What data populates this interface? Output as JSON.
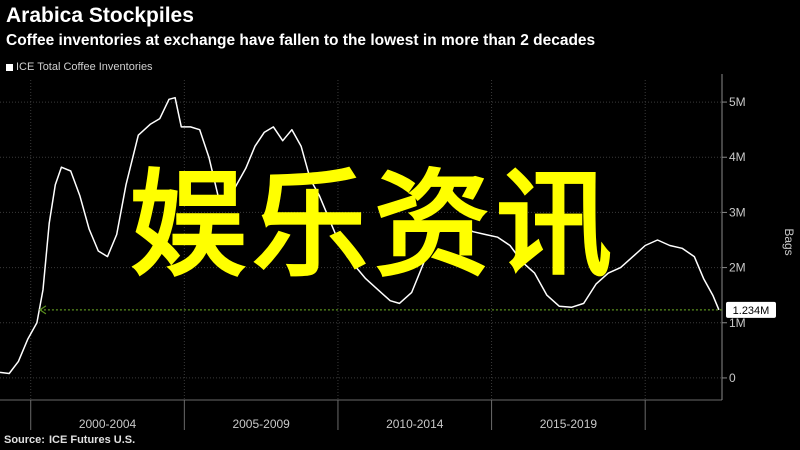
{
  "header": {
    "title": "Arabica Stockpiles",
    "subtitle": "Coffee inventories at exchange have fallen to the lowest in more than 2 decades"
  },
  "watermark": {
    "text": "娱乐资讯"
  },
  "source": {
    "label": "Source:",
    "text": "ICE Futures U.S."
  },
  "chart_data": {
    "type": "line",
    "title": "Arabica Stockpiles",
    "subtitle": "Coffee inventories at exchange have fallen to the lowest in more than 2 decades",
    "ylabel": "Bags",
    "ylim": [
      -0.4,
      5.4
    ],
    "y_unit": "M",
    "y_ticks": [
      {
        "value": 0,
        "label": "0"
      },
      {
        "value": 1,
        "label": "1M"
      },
      {
        "value": 2,
        "label": "2M"
      },
      {
        "value": 3,
        "label": "3M"
      },
      {
        "value": 4,
        "label": "4M"
      },
      {
        "value": 5,
        "label": "5M"
      }
    ],
    "xlim": [
      1998.0,
      2021.5
    ],
    "x_period_boundaries": [
      1999,
      2004,
      2009,
      2014,
      2019
    ],
    "x_period_labels": [
      {
        "label": "2000-2004",
        "center": 2001.5
      },
      {
        "label": "2005-2009",
        "center": 2006.5
      },
      {
        "label": "2010-2014",
        "center": 2011.5
      },
      {
        "label": "2015-2019",
        "center": 2016.5
      }
    ],
    "grid": true,
    "legend": "top-left",
    "legend_entries": [
      "ICE Total Coffee Inventories"
    ],
    "colors": {
      "series": "#ffffff",
      "reference_line": "#5a8f1e",
      "watermark": "#ffff00"
    },
    "series": [
      {
        "name": "ICE Total Coffee Inventories",
        "points": [
          [
            1998.0,
            0.1
          ],
          [
            1998.3,
            0.08
          ],
          [
            1998.6,
            0.3
          ],
          [
            1998.9,
            0.7
          ],
          [
            1999.2,
            1.0
          ],
          [
            1999.4,
            1.6
          ],
          [
            1999.6,
            2.8
          ],
          [
            1999.8,
            3.5
          ],
          [
            2000.0,
            3.82
          ],
          [
            2000.3,
            3.75
          ],
          [
            2000.6,
            3.3
          ],
          [
            2000.9,
            2.7
          ],
          [
            2001.2,
            2.3
          ],
          [
            2001.5,
            2.2
          ],
          [
            2001.8,
            2.6
          ],
          [
            2002.1,
            3.5
          ],
          [
            2002.5,
            4.4
          ],
          [
            2002.9,
            4.6
          ],
          [
            2003.2,
            4.7
          ],
          [
            2003.5,
            5.05
          ],
          [
            2003.7,
            5.08
          ],
          [
            2003.9,
            4.55
          ],
          [
            2004.2,
            4.55
          ],
          [
            2004.5,
            4.5
          ],
          [
            2004.8,
            4.0
          ],
          [
            2005.1,
            3.3
          ],
          [
            2005.4,
            3.2
          ],
          [
            2005.7,
            3.5
          ],
          [
            2006.0,
            3.8
          ],
          [
            2006.3,
            4.2
          ],
          [
            2006.6,
            4.45
          ],
          [
            2006.9,
            4.55
          ],
          [
            2007.2,
            4.3
          ],
          [
            2007.5,
            4.5
          ],
          [
            2007.8,
            4.2
          ],
          [
            2008.1,
            3.6
          ],
          [
            2008.4,
            3.3
          ],
          [
            2008.7,
            2.9
          ],
          [
            2009.0,
            2.5
          ],
          [
            2009.3,
            2.2
          ],
          [
            2009.6,
            2.0
          ],
          [
            2009.9,
            1.8
          ],
          [
            2010.3,
            1.6
          ],
          [
            2010.7,
            1.4
          ],
          [
            2011.0,
            1.35
          ],
          [
            2011.4,
            1.55
          ],
          [
            2011.8,
            2.1
          ],
          [
            2012.2,
            2.6
          ],
          [
            2012.6,
            2.8
          ],
          [
            2013.0,
            2.75
          ],
          [
            2013.4,
            2.65
          ],
          [
            2013.8,
            2.6
          ],
          [
            2014.2,
            2.55
          ],
          [
            2014.6,
            2.4
          ],
          [
            2015.0,
            2.1
          ],
          [
            2015.4,
            1.9
          ],
          [
            2015.8,
            1.5
          ],
          [
            2016.2,
            1.3
          ],
          [
            2016.6,
            1.28
          ],
          [
            2017.0,
            1.35
          ],
          [
            2017.4,
            1.7
          ],
          [
            2017.8,
            1.9
          ],
          [
            2018.2,
            2.0
          ],
          [
            2018.6,
            2.2
          ],
          [
            2019.0,
            2.4
          ],
          [
            2019.4,
            2.5
          ],
          [
            2019.8,
            2.4
          ],
          [
            2020.2,
            2.35
          ],
          [
            2020.6,
            2.2
          ],
          [
            2020.9,
            1.8
          ],
          [
            2021.2,
            1.5
          ],
          [
            2021.4,
            1.234
          ]
        ]
      }
    ],
    "reference_line": {
      "value": 1.234,
      "style": "dotted"
    },
    "last_value_label": "1.234M"
  }
}
